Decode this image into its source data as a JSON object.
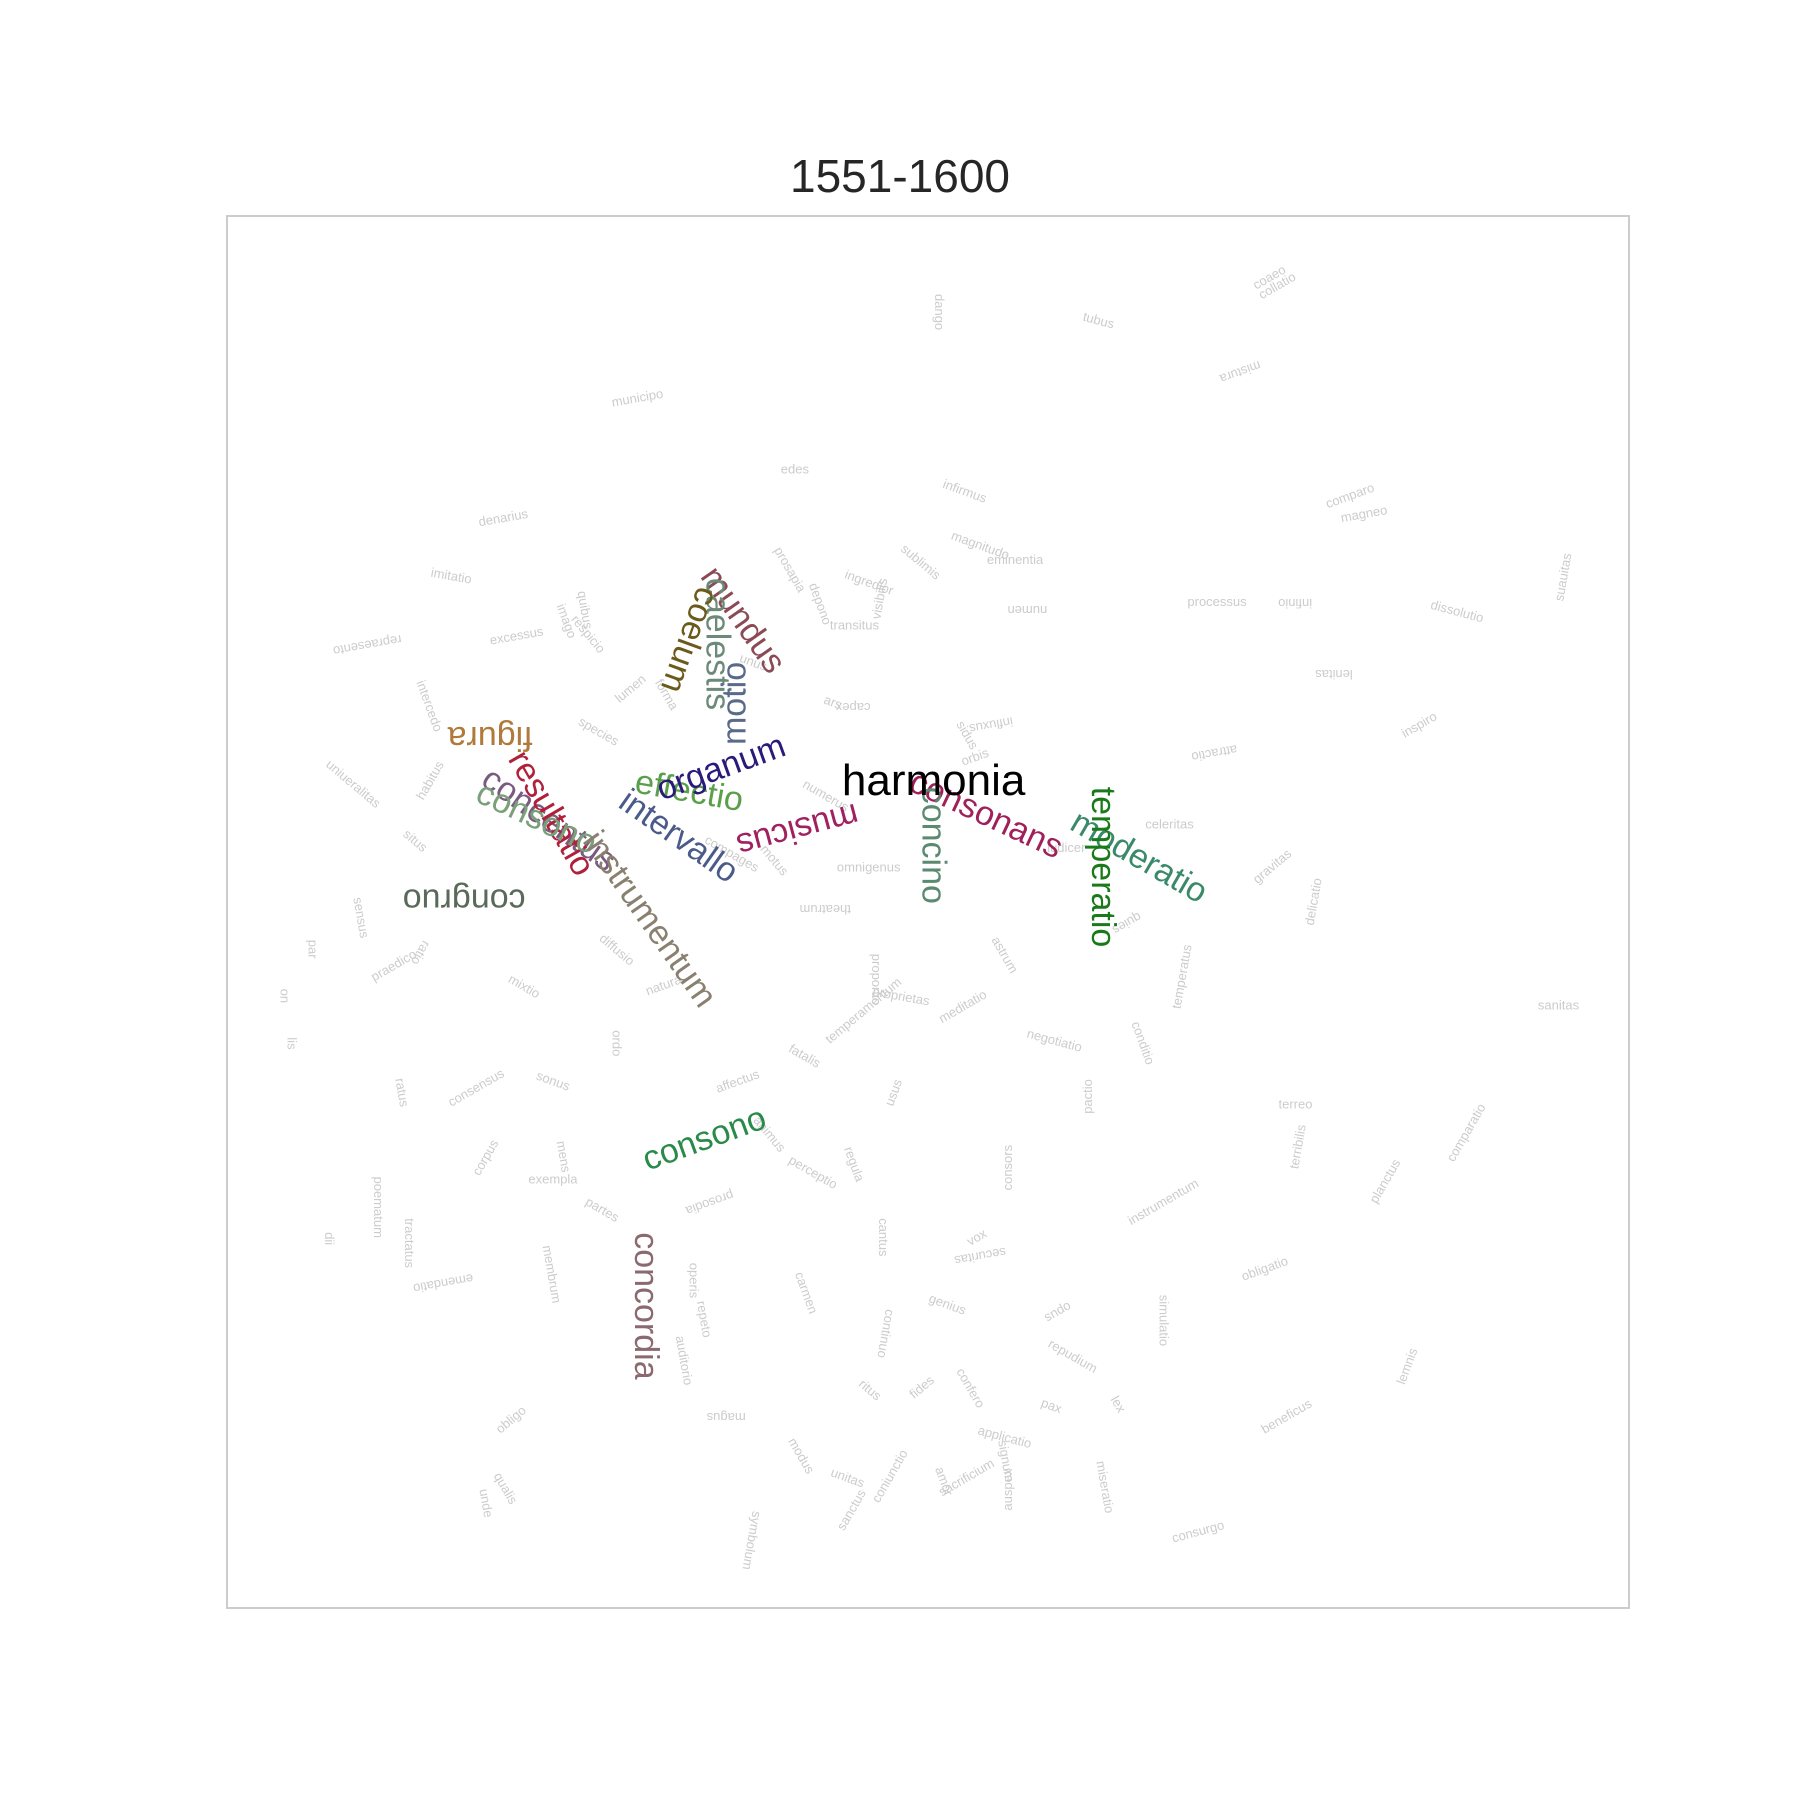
{
  "chart_data": {
    "type": "scatter",
    "title": "1551-1600",
    "xlabel": "",
    "ylabel": "",
    "xlim": [
      0,
      100
    ],
    "ylim": [
      0,
      100
    ],
    "grid": false,
    "target": {
      "word": "harmonia",
      "x": 50.4,
      "y": 58.4
    },
    "highlighted": [
      {
        "word": "mundus",
        "x": 33.7,
        "y": 74.1,
        "rotation": 55,
        "color": "#8b4a55"
      },
      {
        "word": "caelestis",
        "x": 34.2,
        "y": 74.0,
        "rotation": 90,
        "color": "#6b8a78"
      },
      {
        "word": "coelum",
        "x": 33.6,
        "y": 73.5,
        "rotation": 110,
        "color": "#6b5a1a"
      },
      {
        "word": "figura",
        "x": 21.8,
        "y": 63.3,
        "rotation": 180,
        "color": "#b07a3a"
      },
      {
        "word": "concentus",
        "x": 18.0,
        "y": 59.2,
        "rotation": 35,
        "color": "#7a5a80"
      },
      {
        "word": "resultatio",
        "x": 20.0,
        "y": 61.0,
        "rotation": 60,
        "color": "#b0203a"
      },
      {
        "word": "consono",
        "x": 17.6,
        "y": 58.0,
        "rotation": 25,
        "color": "#7aa07a"
      },
      {
        "word": "instrumentum",
        "x": 25.3,
        "y": 55.1,
        "rotation": 55,
        "color": "#8a8070"
      },
      {
        "word": "effectio",
        "x": 29.0,
        "y": 58.6,
        "rotation": 10,
        "color": "#5aa04a"
      },
      {
        "word": "organum",
        "x": 31.0,
        "y": 58.0,
        "rotation": -20,
        "color": "#2a1a7a"
      },
      {
        "word": "intervallo",
        "x": 27.8,
        "y": 57.6,
        "rotation": 35,
        "color": "#4a5a8a"
      },
      {
        "word": "motio",
        "x": 37.0,
        "y": 62.0,
        "rotation": -90,
        "color": "#5a6a8a"
      },
      {
        "word": "congruo",
        "x": 21.3,
        "y": 51.6,
        "rotation": 180,
        "color": "#5a6a5a"
      },
      {
        "word": "consono",
        "x": 30.0,
        "y": 31.4,
        "rotation": -20,
        "color": "#2a8a4a"
      },
      {
        "word": "concordia",
        "x": 29.1,
        "y": 27.0,
        "rotation": 90,
        "color": "#8a6a70"
      },
      {
        "word": "musicus",
        "x": 44.8,
        "y": 57.8,
        "rotation": 165,
        "color": "#a02060"
      },
      {
        "word": "consonans",
        "x": 48.5,
        "y": 58.8,
        "rotation": 25,
        "color": "#a0205a"
      },
      {
        "word": "concino",
        "x": 49.6,
        "y": 59.0,
        "rotation": 90,
        "color": "#5a8a70"
      },
      {
        "word": "moderatio",
        "x": 60.0,
        "y": 56.0,
        "rotation": 30,
        "color": "#3a8a6a"
      },
      {
        "word": "temperatio",
        "x": 61.7,
        "y": 59.0,
        "rotation": 90,
        "color": "#1a7a1a"
      }
    ],
    "background_words": [
      {
        "word": "dango",
        "x": 50.5,
        "y": 94.4,
        "rotation": 90
      },
      {
        "word": "tubus",
        "x": 61.0,
        "y": 92.5,
        "rotation": 15
      },
      {
        "word": "coaeo",
        "x": 73.4,
        "y": 94.7,
        "rotation": -30
      },
      {
        "word": "collatio",
        "x": 73.8,
        "y": 94.0,
        "rotation": -30
      },
      {
        "word": "mistura",
        "x": 73.6,
        "y": 89.6,
        "rotation": 160
      },
      {
        "word": "municipo",
        "x": 27.5,
        "y": 86.3,
        "rotation": -10
      },
      {
        "word": "denarius",
        "x": 18.0,
        "y": 77.7,
        "rotation": -10
      },
      {
        "word": "imitatio",
        "x": 14.5,
        "y": 74.1,
        "rotation": 10
      },
      {
        "word": "repraesento",
        "x": 12.4,
        "y": 69.9,
        "rotation": 170
      },
      {
        "word": "excessus",
        "x": 18.8,
        "y": 69.2,
        "rotation": -10
      },
      {
        "word": "eminentia",
        "x": 54.2,
        "y": 75.0,
        "rotation": 0
      },
      {
        "word": "sublimis",
        "x": 48.0,
        "y": 76.0,
        "rotation": 40
      },
      {
        "word": "magnitudo",
        "x": 51.6,
        "y": 76.8,
        "rotation": 20
      },
      {
        "word": "transitus",
        "x": 43.0,
        "y": 70.3,
        "rotation": 0
      },
      {
        "word": "visibilis",
        "x": 46.6,
        "y": 71.0,
        "rotation": -80
      },
      {
        "word": "numen",
        "x": 58.5,
        "y": 72.0,
        "rotation": 180
      },
      {
        "word": "processus",
        "x": 68.5,
        "y": 72.0,
        "rotation": 0
      },
      {
        "word": "infinio",
        "x": 77.4,
        "y": 72.5,
        "rotation": 180
      },
      {
        "word": "dissolutio",
        "x": 85.8,
        "y": 71.8,
        "rotation": 15
      },
      {
        "word": "suauitas",
        "x": 95.3,
        "y": 72.3,
        "rotation": -80
      },
      {
        "word": "lenitas",
        "x": 80.3,
        "y": 67.4,
        "rotation": 180
      },
      {
        "word": "capex",
        "x": 45.9,
        "y": 65.0,
        "rotation": 180
      },
      {
        "word": "omnigenus",
        "x": 43.5,
        "y": 52.9,
        "rotation": 0
      },
      {
        "word": "theatrum",
        "x": 44.5,
        "y": 50.5,
        "rotation": 180
      },
      {
        "word": "ludicer",
        "x": 58.5,
        "y": 54.3,
        "rotation": 0
      },
      {
        "word": "negotiatio",
        "x": 57.0,
        "y": 41.0,
        "rotation": 15
      },
      {
        "word": "meditatio",
        "x": 51.0,
        "y": 42.0,
        "rotation": -30
      },
      {
        "word": "sanitas",
        "x": 93.5,
        "y": 43.0,
        "rotation": 0
      },
      {
        "word": "terreo",
        "x": 75.0,
        "y": 35.9,
        "rotation": 0
      },
      {
        "word": "terribilis",
        "x": 76.4,
        "y": 31.5,
        "rotation": -80
      },
      {
        "word": "comparatio",
        "x": 87.5,
        "y": 32.0,
        "rotation": -60
      },
      {
        "word": "pactio",
        "x": 61.7,
        "y": 35.5,
        "rotation": -90
      },
      {
        "word": "consors",
        "x": 56.0,
        "y": 30.0,
        "rotation": -90
      },
      {
        "word": "instrumentum",
        "x": 64.5,
        "y": 27.5,
        "rotation": -30
      },
      {
        "word": "securitas",
        "x": 55.5,
        "y": 25.9,
        "rotation": 170
      },
      {
        "word": "simulatio",
        "x": 66.5,
        "y": 22.5,
        "rotation": 90
      },
      {
        "word": "obligatio",
        "x": 72.5,
        "y": 23.5,
        "rotation": -20
      },
      {
        "word": "repudium",
        "x": 58.5,
        "y": 18.8,
        "rotation": 30
      },
      {
        "word": "beneficus",
        "x": 74.0,
        "y": 12.5,
        "rotation": -30
      },
      {
        "word": "consurgo",
        "x": 67.5,
        "y": 4.7,
        "rotation": -15
      },
      {
        "word": "miseratio",
        "x": 62.0,
        "y": 10.5,
        "rotation": 80
      },
      {
        "word": "magus",
        "x": 37.0,
        "y": 14.0,
        "rotation": 180
      },
      {
        "word": "auspex",
        "x": 56.0,
        "y": 7.0,
        "rotation": -90
      },
      {
        "word": "prosodia",
        "x": 36.0,
        "y": 30.0,
        "rotation": 160
      },
      {
        "word": "exempla",
        "x": 21.5,
        "y": 30.5,
        "rotation": 0
      },
      {
        "word": "tractatus",
        "x": 12.7,
        "y": 28.0,
        "rotation": 90
      },
      {
        "word": "poematum",
        "x": 10.5,
        "y": 31.0,
        "rotation": 90
      },
      {
        "word": "emendatio",
        "x": 17.5,
        "y": 24.0,
        "rotation": 170
      },
      {
        "word": "par",
        "x": 5.8,
        "y": 48.0,
        "rotation": 90
      },
      {
        "word": "uniueralitas",
        "x": 7.0,
        "y": 60.5,
        "rotation": 40
      },
      {
        "word": "obligo",
        "x": 19.5,
        "y": 12.5,
        "rotation": -40
      },
      {
        "word": "unde",
        "x": 18.0,
        "y": 8.5,
        "rotation": 80
      },
      {
        "word": "qualis",
        "x": 19.0,
        "y": 9.5,
        "rotation": 60
      },
      {
        "word": "operis",
        "x": 33.0,
        "y": 24.8,
        "rotation": 90
      },
      {
        "word": "symbolum",
        "x": 37.5,
        "y": 7.0,
        "rotation": 100
      },
      {
        "word": "sanctus",
        "x": 44.0,
        "y": 5.5,
        "rotation": -60
      },
      {
        "word": "influxus",
        "x": 56.0,
        "y": 64.0,
        "rotation": 170
      },
      {
        "word": "lemnis",
        "x": 84.0,
        "y": 16.0,
        "rotation": -70
      },
      {
        "word": "planctus",
        "x": 82.0,
        "y": 29.0,
        "rotation": -60
      },
      {
        "word": "inspiro",
        "x": 84.0,
        "y": 62.5,
        "rotation": -30
      },
      {
        "word": "attractio",
        "x": 72.0,
        "y": 62.0,
        "rotation": 170
      },
      {
        "word": "gravitas",
        "x": 73.5,
        "y": 52.0,
        "rotation": -40
      },
      {
        "word": "delicatio",
        "x": 77.5,
        "y": 49.0,
        "rotation": -80
      },
      {
        "word": "comparo",
        "x": 78.5,
        "y": 79.0,
        "rotation": -20
      },
      {
        "word": "magneo",
        "x": 79.5,
        "y": 78.0,
        "rotation": -10
      },
      {
        "word": "conditio",
        "x": 64.5,
        "y": 42.0,
        "rotation": 70
      },
      {
        "word": "temperatus",
        "x": 68.0,
        "y": 43.0,
        "rotation": -80
      },
      {
        "word": "infirmus",
        "x": 51.0,
        "y": 80.5,
        "rotation": 20
      },
      {
        "word": "edes",
        "x": 39.5,
        "y": 81.5,
        "rotation": 0
      },
      {
        "word": "prosapia",
        "x": 39.0,
        "y": 76.0,
        "rotation": 60
      },
      {
        "word": "imago",
        "x": 23.5,
        "y": 72.0,
        "rotation": 70
      },
      {
        "word": "respicio",
        "x": 24.5,
        "y": 71.0,
        "rotation": 50
      },
      {
        "word": "quibus",
        "x": 25.0,
        "y": 73.0,
        "rotation": 80
      },
      {
        "word": "intercedo",
        "x": 13.5,
        "y": 66.5,
        "rotation": 70
      },
      {
        "word": "unus",
        "x": 36.5,
        "y": 68.0,
        "rotation": 20
      },
      {
        "word": "ingredior",
        "x": 44.0,
        "y": 74.0,
        "rotation": 20
      },
      {
        "word": "depono",
        "x": 41.5,
        "y": 73.5,
        "rotation": 70
      },
      {
        "word": "diffusio",
        "x": 26.5,
        "y": 48.0,
        "rotation": 40
      },
      {
        "word": "fatalis",
        "x": 40.0,
        "y": 40.0,
        "rotation": 30
      },
      {
        "word": "proportio",
        "x": 46.0,
        "y": 47.0,
        "rotation": 90
      },
      {
        "word": "temperamentum",
        "x": 43.0,
        "y": 40.5,
        "rotation": -40
      },
      {
        "word": "perceptio",
        "x": 40.0,
        "y": 32.0,
        "rotation": 30
      },
      {
        "word": "regula",
        "x": 44.0,
        "y": 33.0,
        "rotation": 70
      },
      {
        "word": "continuo",
        "x": 47.0,
        "y": 21.5,
        "rotation": 100
      },
      {
        "word": "genius",
        "x": 50.0,
        "y": 22.0,
        "rotation": 20
      },
      {
        "word": "confero",
        "x": 52.0,
        "y": 17.0,
        "rotation": 60
      },
      {
        "word": "applicatio",
        "x": 53.5,
        "y": 12.5,
        "rotation": 15
      },
      {
        "word": "sacrificium",
        "x": 51.0,
        "y": 8.0,
        "rotation": -30
      },
      {
        "word": "repeto",
        "x": 33.5,
        "y": 22.0,
        "rotation": 80
      },
      {
        "word": "auditorio",
        "x": 32.0,
        "y": 19.5,
        "rotation": 80
      },
      {
        "word": "carmen",
        "x": 40.5,
        "y": 24.0,
        "rotation": 70
      },
      {
        "word": "proprietas",
        "x": 46.0,
        "y": 44.0,
        "rotation": 10
      },
      {
        "word": "ratus",
        "x": 12.0,
        "y": 38.0,
        "rotation": 80
      },
      {
        "word": "mixtio",
        "x": 20.0,
        "y": 45.0,
        "rotation": 30
      },
      {
        "word": "consensus",
        "x": 16.0,
        "y": 36.0,
        "rotation": -30
      },
      {
        "word": "sidus",
        "x": 52.0,
        "y": 63.5,
        "rotation": 60
      },
      {
        "word": "motus",
        "x": 38.0,
        "y": 54.5,
        "rotation": 50
      },
      {
        "word": "celeritas",
        "x": 65.5,
        "y": 56.0,
        "rotation": 0
      },
      {
        "word": "quies",
        "x": 65.0,
        "y": 50.0,
        "rotation": 150
      },
      {
        "word": "natura",
        "x": 30.0,
        "y": 44.0,
        "rotation": -20
      },
      {
        "word": "ordo",
        "x": 27.5,
        "y": 41.5,
        "rotation": 90
      },
      {
        "word": "ratio",
        "x": 14.0,
        "y": 48.0,
        "rotation": 120
      },
      {
        "word": "praedico",
        "x": 10.5,
        "y": 45.0,
        "rotation": -30
      },
      {
        "word": "sensus",
        "x": 9.0,
        "y": 51.0,
        "rotation": 80
      },
      {
        "word": "lis",
        "x": 4.3,
        "y": 41.0,
        "rotation": 90
      },
      {
        "word": "on",
        "x": 3.8,
        "y": 44.5,
        "rotation": 90
      },
      {
        "word": "dii",
        "x": 7.0,
        "y": 27.0,
        "rotation": 90
      },
      {
        "word": "compages",
        "x": 34.0,
        "y": 55.0,
        "rotation": 30
      },
      {
        "word": "cantus",
        "x": 46.5,
        "y": 28.0,
        "rotation": 90
      },
      {
        "word": "vox",
        "x": 53.0,
        "y": 26.0,
        "rotation": -30
      },
      {
        "word": "numerus",
        "x": 41.0,
        "y": 59.0,
        "rotation": 30
      },
      {
        "word": "sonus",
        "x": 22.0,
        "y": 38.0,
        "rotation": 20
      },
      {
        "word": "modus",
        "x": 40.0,
        "y": 12.0,
        "rotation": 60
      },
      {
        "word": "ritus",
        "x": 45.0,
        "y": 16.0,
        "rotation": 40
      },
      {
        "word": "signum",
        "x": 55.0,
        "y": 12.0,
        "rotation": 80
      },
      {
        "word": "orbis",
        "x": 52.5,
        "y": 60.5,
        "rotation": -20
      },
      {
        "word": "astrum",
        "x": 54.5,
        "y": 48.0,
        "rotation": 60
      },
      {
        "word": "lumen",
        "x": 28.0,
        "y": 65.0,
        "rotation": -40
      },
      {
        "word": "forma",
        "x": 30.5,
        "y": 66.5,
        "rotation": 60
      },
      {
        "word": "species",
        "x": 25.0,
        "y": 63.5,
        "rotation": 30
      },
      {
        "word": "habitus",
        "x": 14.0,
        "y": 58.0,
        "rotation": -60
      },
      {
        "word": "situs",
        "x": 12.5,
        "y": 55.5,
        "rotation": 40
      },
      {
        "word": "affectus",
        "x": 35.0,
        "y": 37.0,
        "rotation": -20
      },
      {
        "word": "animus",
        "x": 37.5,
        "y": 35.0,
        "rotation": 50
      },
      {
        "word": "mens",
        "x": 23.5,
        "y": 33.5,
        "rotation": 80
      },
      {
        "word": "corpus",
        "x": 18.0,
        "y": 31.0,
        "rotation": -60
      },
      {
        "word": "partes",
        "x": 25.5,
        "y": 29.0,
        "rotation": 30
      },
      {
        "word": "membrum",
        "x": 22.5,
        "y": 26.0,
        "rotation": 80
      },
      {
        "word": "ars",
        "x": 42.5,
        "y": 65.0,
        "rotation": 20
      },
      {
        "word": "usus",
        "x": 47.5,
        "y": 36.0,
        "rotation": -70
      },
      {
        "word": "opus",
        "x": 60.0,
        "y": 22.0,
        "rotation": 150
      },
      {
        "word": "lex",
        "x": 63.0,
        "y": 15.0,
        "rotation": 60
      },
      {
        "word": "pax",
        "x": 58.0,
        "y": 14.5,
        "rotation": 20
      },
      {
        "word": "fides",
        "x": 49.0,
        "y": 15.0,
        "rotation": -40
      },
      {
        "word": "amor",
        "x": 50.5,
        "y": 10.0,
        "rotation": 70
      },
      {
        "word": "unitas",
        "x": 43.0,
        "y": 9.5,
        "rotation": 20
      },
      {
        "word": "coniunctio",
        "x": 46.5,
        "y": 7.5,
        "rotation": -60
      }
    ]
  }
}
